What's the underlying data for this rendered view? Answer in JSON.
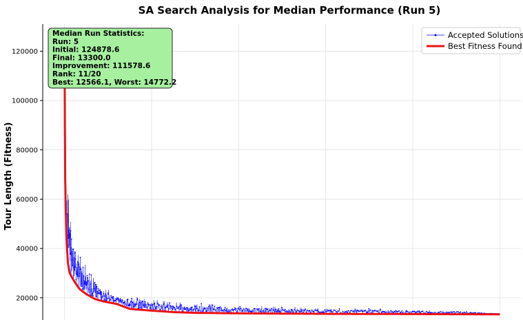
{
  "chart_data": {
    "type": "line",
    "title": "SA Search Analysis for Median Performance (Run 5)",
    "xlabel": "",
    "ylabel": "Tour Length (Fitness)",
    "yticks": [
      "20000",
      "40000",
      "60000",
      "80000",
      "100000",
      "120000"
    ],
    "ylim": [
      11000,
      131000
    ],
    "xlim": [
      -0.05,
      1.05
    ],
    "grid": true,
    "legend_position": "top-right",
    "series": [
      {
        "name": "Accepted Solutions",
        "color": "#0000ff",
        "style": "thin line with dot markers",
        "x": [
          0.0,
          0.0015,
          0.003,
          0.006,
          0.01,
          0.015,
          0.02,
          0.03,
          0.04,
          0.05,
          0.06,
          0.08,
          0.1,
          0.12,
          0.15,
          0.2,
          0.25,
          0.3,
          0.4,
          0.5,
          0.6,
          0.7,
          0.8,
          0.9,
          1.0
        ],
        "y": [
          124878.6,
          72000,
          66000,
          60000,
          53000,
          47000,
          42000,
          36000,
          32000,
          29000,
          27000,
          24000,
          22000,
          20000,
          19000,
          18000,
          17000,
          16500,
          16000,
          15500,
          15000,
          14800,
          14500,
          14200,
          13300
        ]
      },
      {
        "name": "Best Fitness Found",
        "color": "#ee1111",
        "style": "thick line",
        "x": [
          0.0,
          0.0015,
          0.003,
          0.005,
          0.008,
          0.012,
          0.018,
          0.025,
          0.035,
          0.05,
          0.07,
          0.09,
          0.12,
          0.15,
          0.2,
          0.25,
          0.3,
          0.4,
          0.5,
          0.6,
          0.7,
          0.8,
          0.9,
          1.0
        ],
        "y": [
          124878.6,
          70000,
          55000,
          42000,
          34000,
          30000,
          28000,
          26000,
          23500,
          21500,
          19500,
          18500,
          17500,
          15500,
          14800,
          14200,
          13900,
          13700,
          13600,
          13500,
          13450,
          13400,
          13350,
          13300
        ]
      }
    ],
    "stats_box": {
      "lines": [
        "Median Run Statistics:",
        "Run: 5",
        "Initial: 124878.6",
        "Final: 13300.0",
        "Improvement: 111578.6",
        "Rank: 11/20",
        "Best: 12566.1, Worst: 14772.2"
      ],
      "background": "#a6f0a0"
    }
  }
}
